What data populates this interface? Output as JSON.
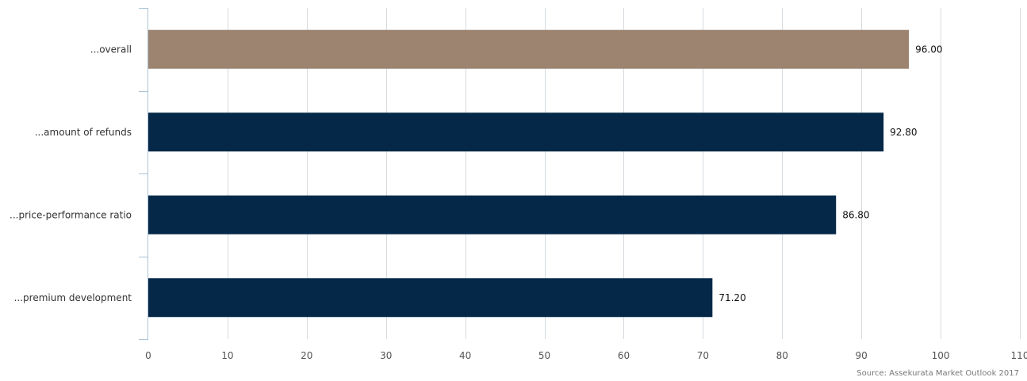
{
  "chart_data": {
    "type": "bar",
    "orientation": "horizontal",
    "categories": [
      "...overall",
      "...amount of refunds",
      "...price-performance ratio",
      "...premium development"
    ],
    "values": [
      96.0,
      92.8,
      86.8,
      71.2
    ],
    "value_labels": [
      "96.00",
      "92.80",
      "86.80",
      "71.20"
    ],
    "xlim": [
      0,
      110
    ],
    "xticks": [
      0,
      10,
      20,
      30,
      40,
      50,
      60,
      70,
      80,
      90,
      100,
      110
    ],
    "grid": true,
    "colors": {
      "highlight": "#9C8470",
      "default": "#052849",
      "grid": "#D5DBE0",
      "axis": "#A9C3D6"
    },
    "highlight_index": 0
  },
  "source": "Source: Assekurata Market Outlook 2017"
}
